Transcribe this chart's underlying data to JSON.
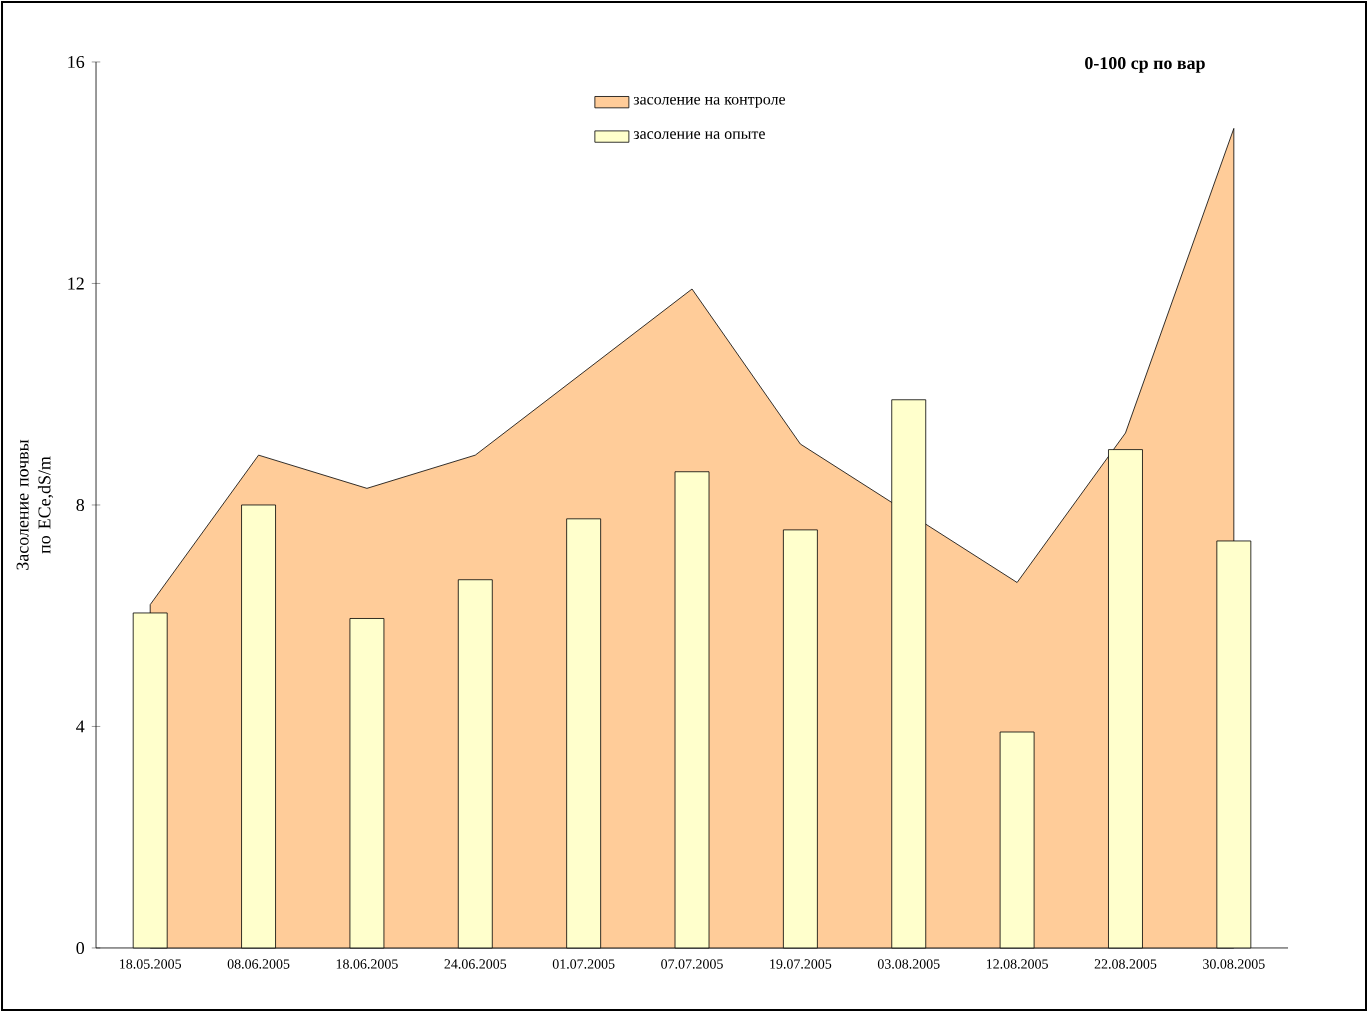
{
  "chart_data": {
    "type": "bar",
    "title": "0-100 ср по вар",
    "ylabel": "Засоление почвы по ECe,dS/m",
    "categories": [
      "18.05.2005",
      "08.06.2005",
      "18.06.2005",
      "24.06.2005",
      "01.07.2005",
      "07.07.2005",
      "19.07.2005",
      "03.08.2005",
      "12.08.2005",
      "22.08.2005",
      "30.08.2005"
    ],
    "series": [
      {
        "name": "засоление на контроле",
        "type": "area",
        "color": "#ffcc99",
        "values": [
          6.2,
          8.9,
          8.3,
          8.9,
          null,
          11.9,
          9.1,
          null,
          6.6,
          9.3,
          14.8
        ]
      },
      {
        "name": "засоление на опыте",
        "color": "#ffffcc",
        "values": [
          6.05,
          8.0,
          5.95,
          6.65,
          7.75,
          8.6,
          7.55,
          9.9,
          3.9,
          9.0,
          7.35
        ]
      }
    ],
    "ylim": [
      0,
      16
    ],
    "yticks": [
      0,
      4,
      8,
      12,
      16
    ],
    "grid": false,
    "legend": "top"
  }
}
